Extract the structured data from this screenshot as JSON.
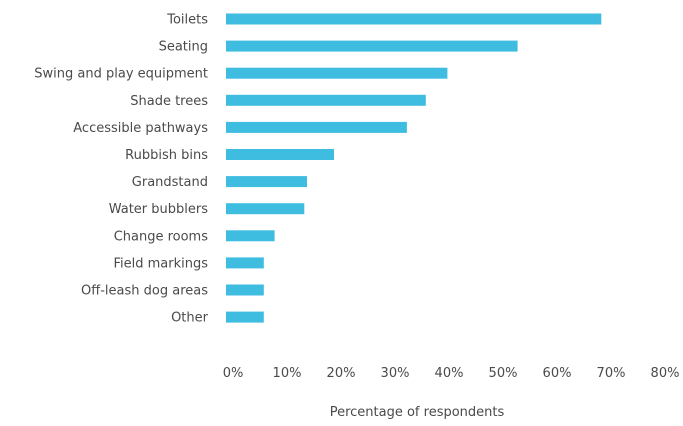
{
  "chart_data": {
    "type": "bar",
    "orientation": "horizontal",
    "categories": [
      "Toilets",
      "Seating",
      "Swing and play equipment",
      "Shade trees",
      "Accessible pathways",
      "Rubbish bins",
      "Grandstand",
      "Water bubblers",
      "Change rooms",
      "Field markings",
      "Off-leash dog areas",
      "Other"
    ],
    "values": [
      69.5,
      54,
      41,
      37,
      33.5,
      20,
      15,
      14.5,
      9,
      7,
      7,
      7
    ],
    "unit": "%",
    "title": "",
    "xlabel": "Percentage of respondents",
    "ylabel": "",
    "xlim": [
      0,
      80
    ],
    "xticks": [
      "0%",
      "10%",
      "20%",
      "30%",
      "40%",
      "50%",
      "60%",
      "70%",
      "80%"
    ],
    "grid": false,
    "legend": "none",
    "bar_color": "#3fbde0"
  }
}
